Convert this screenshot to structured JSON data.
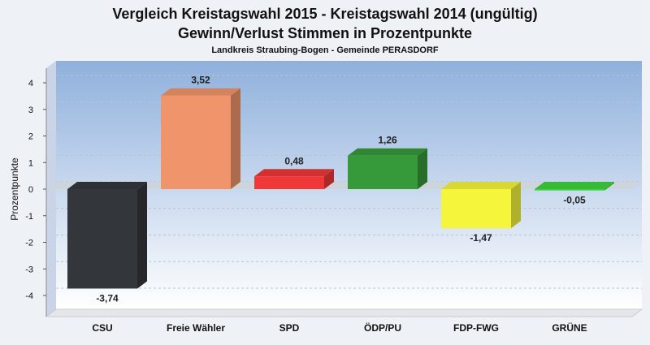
{
  "chart_data": {
    "type": "bar",
    "title": "Vergleich Kreistagswahl 2015 - Kreistagswahl 2014 (ungültig)",
    "subtitle": "Gewinn/Verlust Stimmen in Prozentpunkte",
    "subsubtitle": "Landkreis Straubing-Bogen - Gemeinde PERASDORF",
    "xlabel": "",
    "ylabel": "Prozentpunkte",
    "ylim": [
      -4.5,
      4.5
    ],
    "yticks": [
      -4,
      -3,
      -2,
      -1,
      0,
      1,
      2,
      3,
      4
    ],
    "categories": [
      "CSU",
      "Freie Wähler",
      "SPD",
      "ÖDP/PU",
      "FDP-FWG",
      "GRÜNE"
    ],
    "values": [
      -3.74,
      3.52,
      0.48,
      1.26,
      -1.47,
      -0.05
    ],
    "value_labels": [
      "-3,74",
      "3,52",
      "0,48",
      "1,26",
      "-1,47",
      "-0,05"
    ],
    "colors": [
      "#33363b",
      "#f0956b",
      "#f03838",
      "#36993a",
      "#f5f53b",
      "#3ed43e"
    ],
    "grid": true
  }
}
